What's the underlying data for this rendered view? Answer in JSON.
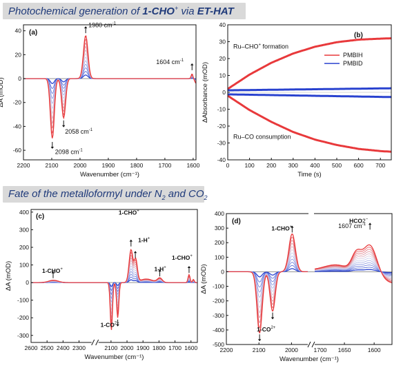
{
  "banners": {
    "top": {
      "prefix": "Photochemical generation of ",
      "bold": "1-CHO",
      "sup": "+",
      "middle": " via ",
      "bold2": "ET-HAT"
    },
    "bottom": {
      "prefix": "Fate of the metalloformyl under N",
      "sub1": "2",
      "middle": " and CO",
      "sub2": "2"
    }
  },
  "colors": {
    "red": "#e8393b",
    "blue": "#2942cf",
    "light": "#d6d8ee"
  },
  "chart_data": [
    {
      "panel": "(a)",
      "type": "line",
      "xlabel": "Wavenumber (cm⁻¹)",
      "ylabel": "ΔA (mOD)",
      "xlim": [
        2200,
        1590
      ],
      "ylim": [
        -68,
        45
      ],
      "xticks": [
        2200,
        2100,
        2000,
        1900,
        1800,
        1700,
        1600
      ],
      "yticks": [
        -60,
        -40,
        -20,
        0,
        20,
        40
      ],
      "n_traces": 12,
      "peaks": [
        {
          "x": 2098,
          "amp": -50,
          "w": 7
        },
        {
          "x": 2058,
          "amp": -33,
          "w": 7
        },
        {
          "x": 1980,
          "amp": 36,
          "w": 8
        },
        {
          "x": 1604,
          "amp": 4,
          "w": 3
        },
        {
          "x": 1590,
          "amp": -4,
          "w": 4
        }
      ],
      "annotations": [
        "1980 cm⁻¹",
        "2058 cm⁻¹",
        "2098 cm⁻¹",
        "1604 cm⁻¹"
      ]
    },
    {
      "panel": "(b)",
      "type": "line",
      "xlabel": "Time (s)",
      "ylabel": "ΔAbsorbance (mOD)",
      "xlim": [
        0,
        750
      ],
      "ylim": [
        -40,
        40
      ],
      "xticks": [
        0,
        100,
        200,
        300,
        400,
        500,
        600,
        700
      ],
      "yticks": [
        -40,
        -30,
        -20,
        -10,
        0,
        10,
        20,
        30,
        40
      ],
      "series": [
        {
          "name": "PMBIH",
          "color": "red",
          "x": [
            0,
            100,
            200,
            300,
            400,
            500,
            600,
            700,
            750
          ],
          "upper": [
            2,
            10.5,
            17.5,
            23,
            27,
            29.7,
            31.2,
            31.8,
            32
          ],
          "lower": [
            -2,
            -10.5,
            -17.5,
            -23.5,
            -28,
            -31.2,
            -33.5,
            -34.8,
            -35.2
          ]
        },
        {
          "name": "PMBID",
          "color": "blue",
          "x": [
            0,
            750
          ],
          "upper": [
            1.2,
            2.4
          ],
          "lower": [
            -1.2,
            -2.8
          ]
        }
      ],
      "annotations": [
        "Ru–CHO⁺ formation",
        "Ru–CO consumption"
      ]
    },
    {
      "panel": "(c)",
      "type": "line",
      "xlabel": "Wavenumber (cm⁻¹)",
      "ylabel": "ΔA (mOD)",
      "xlim": [
        2600,
        1560
      ],
      "ylim": [
        -340,
        415
      ],
      "axis_break_at": 2200,
      "xticks": [
        2600,
        2500,
        2400,
        2300,
        2100,
        2000,
        1900,
        1800,
        1700,
        1600
      ],
      "yticks": [
        -300,
        -200,
        -100,
        0,
        100,
        200,
        300,
        400
      ],
      "n_traces": 12,
      "peaks": [
        {
          "x": 2460,
          "amp": 13,
          "w": 30
        },
        {
          "x": 2098,
          "amp": -270,
          "w": 7
        },
        {
          "x": 2058,
          "amp": -200,
          "w": 7
        },
        {
          "x": 1975,
          "amp": 185,
          "w": 12
        },
        {
          "x": 1945,
          "amp": 125,
          "w": 10
        },
        {
          "x": 1880,
          "amp": 20,
          "w": 40
        },
        {
          "x": 1795,
          "amp": 25,
          "w": 15
        },
        {
          "x": 1612,
          "amp": 45,
          "w": 6
        },
        {
          "x": 1585,
          "amp": 18,
          "w": 5
        }
      ],
      "annotations": [
        "1-CHO⁺",
        "1-CHO⁺",
        "1-H⁺",
        "1-H⁺",
        "1-CHO⁺",
        "1-CO²⁺"
      ]
    },
    {
      "panel": "(d)",
      "type": "line",
      "xlabel": "Wavenumber (cm⁻¹)",
      "ylabel": "ΔA (mOD)",
      "ylim": [
        -500,
        400
      ],
      "axis_break": true,
      "xticks": [
        2200,
        2100,
        2000,
        1650,
        1600
      ],
      "yticks": [
        -500,
        -400,
        -300,
        -200,
        -100,
        0,
        100,
        200,
        300,
        400
      ],
      "n_traces": 12,
      "segments": [
        {
          "xlim": [
            2200,
            1950
          ],
          "peaks": [
            {
              "x": 2098,
              "amp": -420,
              "w": 8
            },
            {
              "x": 2058,
              "amp": -270,
              "w": 8
            },
            {
              "x": 1998,
              "amp": 260,
              "w": 10
            }
          ]
        },
        {
          "xlim": [
            1700,
            1570
          ],
          "peaks": [
            {
              "x": 1660,
              "amp": 70,
              "w": 25
            },
            {
              "x": 1630,
              "amp": 120,
              "w": 8
            },
            {
              "x": 1607,
              "amp": 230,
              "w": 12
            }
          ],
          "baseline_slope": 0.6
        }
      ],
      "annotations": [
        "1-CHO⁺",
        "HCO₂⁻",
        "1607 cm⁻¹",
        "1-CO²⁺"
      ]
    }
  ]
}
